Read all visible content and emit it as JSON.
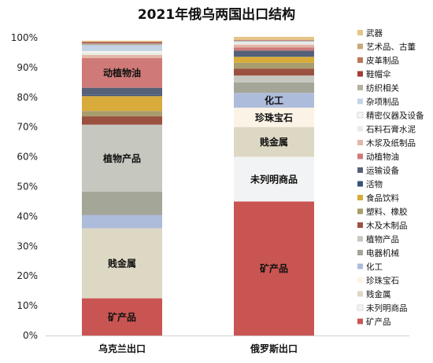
{
  "chart_data": {
    "type": "bar",
    "stacked": true,
    "title": "2021年俄乌两国出口结构",
    "xlabel": "",
    "ylabel": "",
    "ylim": [
      0,
      100
    ],
    "yticks": [
      "0%",
      "10%",
      "20%",
      "30%",
      "40%",
      "50%",
      "60%",
      "70%",
      "80%",
      "90%",
      "100%"
    ],
    "categories": [
      "乌克兰出口",
      "俄罗斯出口"
    ],
    "legend_position": "right",
    "series": [
      {
        "name": "矿产品",
        "color": "#c95552",
        "values": [
          12.5,
          45.0
        ]
      },
      {
        "name": "未列明商品",
        "color": "#f2f3f4",
        "values": [
          0,
          15.0
        ]
      },
      {
        "name": "贱金属",
        "color": "#ddd8c4",
        "values": [
          23.5,
          10.0
        ]
      },
      {
        "name": "珍珠宝石",
        "color": "#fbf3e6",
        "values": [
          0,
          6.5
        ]
      },
      {
        "name": "化工",
        "color": "#aebcdb",
        "values": [
          4.5,
          5.0
        ]
      },
      {
        "name": "电器机械",
        "color": "#a4a697",
        "values": [
          7.8,
          3.5
        ]
      },
      {
        "name": "植物产品",
        "color": "#c6c7bf",
        "values": [
          22.5,
          2.3
        ]
      },
      {
        "name": "木及木制品",
        "color": "#9b5140",
        "values": [
          2.8,
          2.3
        ]
      },
      {
        "name": "塑料、橡胶",
        "color": "#a89d6c",
        "values": [
          1.8,
          2.0
        ]
      },
      {
        "name": "食品饮料",
        "color": "#d8ab3a",
        "values": [
          5.0,
          2.0
        ]
      },
      {
        "name": "活物",
        "color": "#3a5479",
        "values": [
          0.4,
          0.3
        ]
      },
      {
        "name": "运输设备",
        "color": "#566178",
        "values": [
          2.4,
          1.8
        ]
      },
      {
        "name": "动植物油",
        "color": "#cf7a78",
        "values": [
          10.0,
          1.0
        ]
      },
      {
        "name": "木浆及纸制品",
        "color": "#e3b7aa",
        "values": [
          1.0,
          1.0
        ]
      },
      {
        "name": "石料石膏水泥",
        "color": "#ebebe5",
        "values": [
          0.8,
          0.6
        ]
      },
      {
        "name": "精密仪器及设备",
        "color": "#f5f5f2",
        "values": [
          0.5,
          0.2
        ]
      },
      {
        "name": "杂项制品",
        "color": "#c5d3e7",
        "values": [
          2.0,
          0.3
        ]
      },
      {
        "name": "纺织相关",
        "color": "#b7b0a4",
        "values": [
          0.6,
          0.2
        ]
      },
      {
        "name": "鞋帽伞",
        "color": "#a33d38",
        "values": [
          0.3,
          0.1
        ]
      },
      {
        "name": "皮革制品",
        "color": "#bb7657",
        "values": [
          0.2,
          0.1
        ]
      },
      {
        "name": "艺术品、古董",
        "color": "#c8a878",
        "values": [
          0.1,
          0.1
        ]
      },
      {
        "name": "武器",
        "color": "#e6c586",
        "values": [
          0.3,
          1.0
        ]
      }
    ],
    "segment_labels": [
      {
        "category": "乌克兰出口",
        "series": "矿产品",
        "text": "矿产品",
        "color": "#111111"
      },
      {
        "category": "乌克兰出口",
        "series": "贱金属",
        "text": "贱金属",
        "color": "#111111"
      },
      {
        "category": "乌克兰出口",
        "series": "植物产品",
        "text": "植物产品",
        "color": "#111111"
      },
      {
        "category": "乌克兰出口",
        "series": "动植物油",
        "text": "动植物油",
        "color": "#111111"
      },
      {
        "category": "俄罗斯出口",
        "series": "矿产品",
        "text": "矿产品",
        "color": "#ffffff"
      },
      {
        "category": "俄罗斯出口",
        "series": "未列明商品",
        "text": "未列明商品",
        "color": "#111111"
      },
      {
        "category": "俄罗斯出口",
        "series": "贱金属",
        "text": "贱金属",
        "color": "#111111"
      },
      {
        "category": "俄罗斯出口",
        "series": "珍珠宝石",
        "text": "珍珠宝石",
        "color": "#111111"
      },
      {
        "category": "俄罗斯出口",
        "series": "化工",
        "text": "化工",
        "color": "#111111"
      }
    ]
  }
}
